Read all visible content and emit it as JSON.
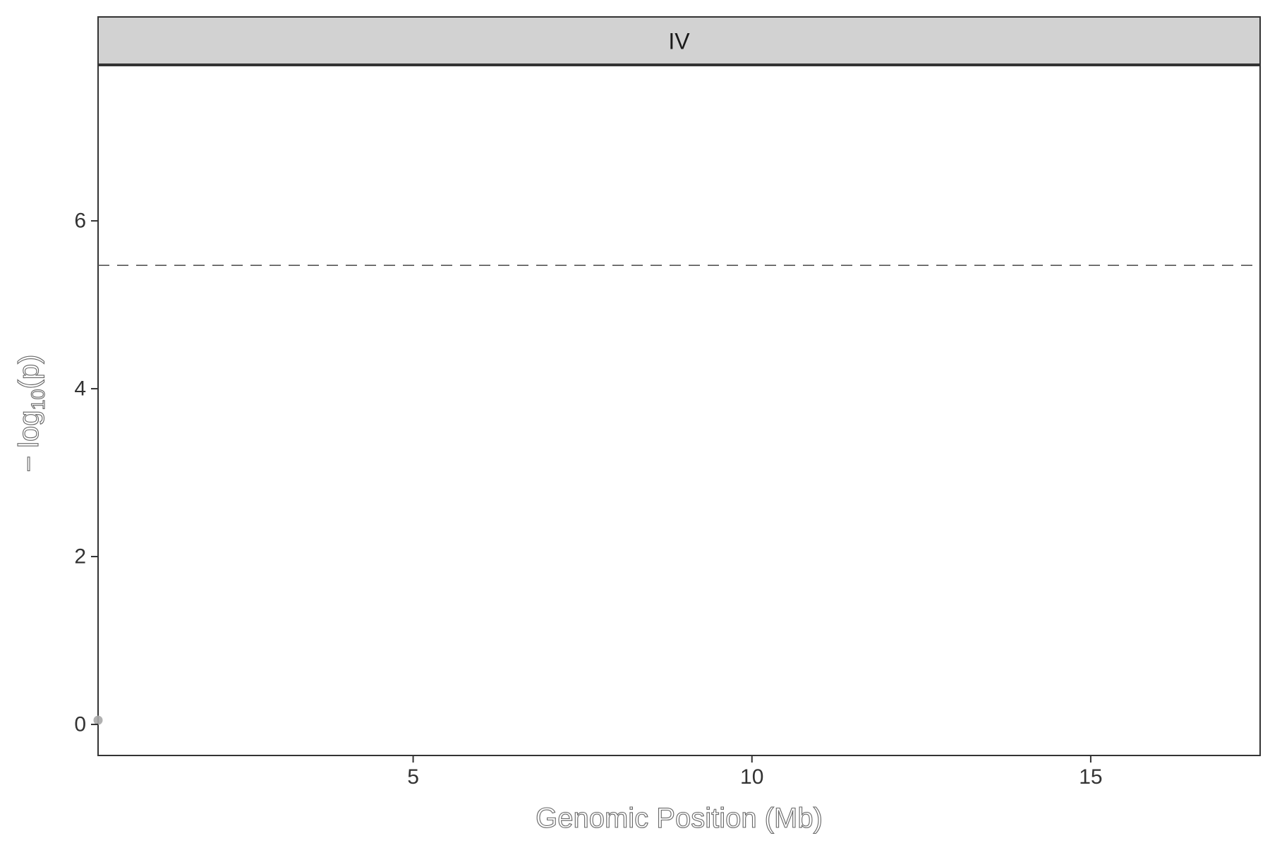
{
  "chart_data": {
    "type": "scatter",
    "facet_label": "IV",
    "xlabel": "Genomic Position (Mb)",
    "ylabel": {
      "prefix": "− log",
      "subscript": "10",
      "suffix": "(p)"
    },
    "xlim": [
      0.35,
      17.5
    ],
    "ylim": [
      -0.37,
      7.85
    ],
    "x_ticks": [
      5,
      10,
      15
    ],
    "x_tick_labels": [
      "5",
      "10",
      "15"
    ],
    "y_ticks": [
      0,
      2,
      4,
      6
    ],
    "y_tick_labels": [
      "0",
      "2",
      "4",
      "6"
    ],
    "threshold": 5.47,
    "points": [
      {
        "x": 0.35,
        "y": 0.05
      }
    ],
    "colors": {
      "point": "#a9a9a9",
      "threshold": "#555555",
      "strip_fill": "#d2d2d2",
      "frame": "#333333"
    },
    "grid": false
  }
}
